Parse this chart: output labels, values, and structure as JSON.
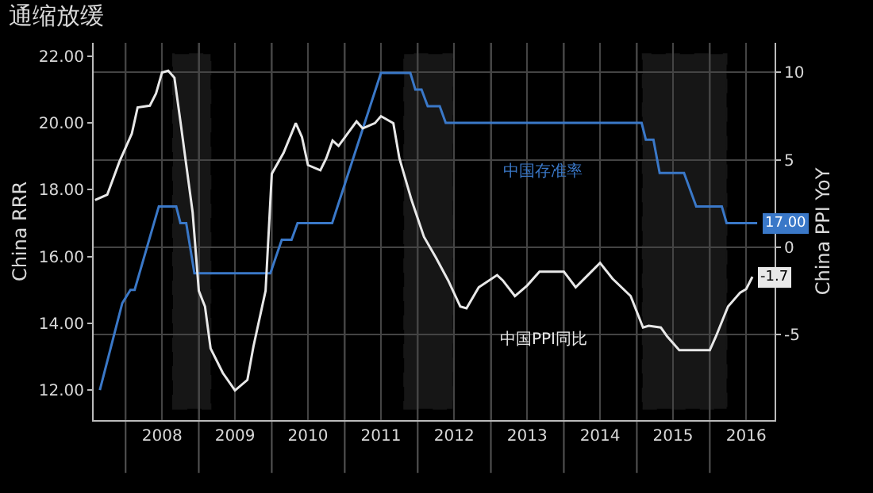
{
  "chart_data": {
    "type": "line",
    "title": "通缩放缓",
    "ylabel": "China RRR",
    "y2label": "China PPI YoY",
    "xlim": [
      "2007-07-25",
      "2016-11-20"
    ],
    "xticks": [
      {
        "value": "2008-01-01",
        "label": null
      },
      {
        "value": "2008-07-01",
        "label": "2008"
      },
      {
        "value": "2009-01-01",
        "label": null
      },
      {
        "value": "2009-07-01",
        "label": "2009"
      },
      {
        "value": "2010-01-01",
        "label": null
      },
      {
        "value": "2010-07-01",
        "label": "2010"
      },
      {
        "value": "2011-01-01",
        "label": null
      },
      {
        "value": "2011-07-01",
        "label": "2011"
      },
      {
        "value": "2012-01-01",
        "label": null
      },
      {
        "value": "2012-07-01",
        "label": "2012"
      },
      {
        "value": "2013-01-01",
        "label": null
      },
      {
        "value": "2013-07-01",
        "label": "2013"
      },
      {
        "value": "2014-01-01",
        "label": null
      },
      {
        "value": "2014-07-01",
        "label": "2014"
      },
      {
        "value": "2015-01-01",
        "label": null
      },
      {
        "value": "2015-07-01",
        "label": "2015"
      },
      {
        "value": "2016-01-01",
        "label": null
      },
      {
        "value": "2016-07-01",
        "label": "2016"
      }
    ],
    "ylim": [
      11.1,
      22.4
    ],
    "yticks": [
      {
        "value": 12,
        "label": "12.00"
      },
      {
        "value": 14,
        "label": "14.00"
      },
      {
        "value": 16,
        "label": "16.00"
      },
      {
        "value": 18,
        "label": "18.00"
      },
      {
        "value": 20,
        "label": "20.00"
      },
      {
        "value": 22,
        "label": "22.00"
      }
    ],
    "y2lim": [
      -9.9,
      11.7
    ],
    "y2ticks": [
      -5,
      0,
      5,
      10
    ],
    "grid": true,
    "legend": false,
    "series": [
      {
        "name": "中国存准率",
        "color": "#3a78c8",
        "x": [
          "2007-08-25",
          "2007-12-15",
          "2008-01-25",
          "2008-02-15",
          "2008-06-15",
          "2008-09-10",
          "2008-10-01",
          "2008-10-30",
          "2008-12-10",
          "2009-12-25",
          "2010-02-20",
          "2010-04-10",
          "2010-05-10",
          "2010-10-30",
          "2011-07-01",
          "2011-11-25",
          "2011-12-20",
          "2012-01-20",
          "2012-02-20",
          "2012-04-20",
          "2012-05-20",
          "2015-01-25",
          "2015-02-15",
          "2015-03-25",
          "2015-04-25",
          "2015-08-25",
          "2015-10-25",
          "2016-03-01",
          "2016-03-25",
          "2016-08-25"
        ],
        "values": [
          12.0,
          14.6,
          15.0,
          15.0,
          17.5,
          17.5,
          17.0,
          17.0,
          15.5,
          15.5,
          16.5,
          16.5,
          17.0,
          17.0,
          21.5,
          21.5,
          21.0,
          21.0,
          20.5,
          20.5,
          20.0,
          20.0,
          19.5,
          19.5,
          18.5,
          18.5,
          17.5,
          17.5,
          17.0,
          17.0
        ],
        "value_labels": [
          null,
          null,
          null,
          null,
          null,
          null,
          null,
          null,
          null,
          null,
          null,
          null,
          null,
          null,
          null,
          null,
          null,
          null,
          null,
          null,
          null,
          null,
          null,
          null,
          null,
          null,
          null,
          null,
          null,
          "17.00"
        ]
      },
      {
        "name": "中国PPI同比",
        "color": "#e8e8e8",
        "axis": "y2",
        "x": [
          "2007-08",
          "2007-10",
          "2007-12",
          "2008-02",
          "2008-03",
          "2008-05",
          "2008-06",
          "2008-07",
          "2008-08",
          "2008-09",
          "2008-10",
          "2008-12",
          "2009-01",
          "2009-02",
          "2009-03",
          "2009-05",
          "2009-07",
          "2009-09",
          "2009-10",
          "2009-12",
          "2010-01",
          "2010-03",
          "2010-05",
          "2010-06",
          "2010-07",
          "2010-09",
          "2010-10",
          "2010-11",
          "2010-12",
          "2011-03",
          "2011-04",
          "2011-06",
          "2011-07",
          "2011-09",
          "2011-10",
          "2011-12",
          "2012-02",
          "2012-04",
          "2012-06",
          "2012-08",
          "2012-09",
          "2012-11",
          "2013-02",
          "2013-03",
          "2013-05",
          "2013-07",
          "2013-09",
          "2014-01",
          "2014-03",
          "2014-05",
          "2014-07",
          "2014-09",
          "2014-12",
          "2015-02",
          "2015-03",
          "2015-05",
          "2015-06",
          "2015-08",
          "2016-01",
          "2016-02",
          "2016-04",
          "2016-06",
          "2016-07",
          "2016-08"
        ],
        "values": [
          2.7,
          3.0,
          4.9,
          6.5,
          8.0,
          8.1,
          8.8,
          10.0,
          10.1,
          9.7,
          7.2,
          2.0,
          -2.5,
          -3.4,
          -5.8,
          -7.2,
          -8.2,
          -7.6,
          -5.7,
          -2.5,
          4.2,
          5.4,
          7.1,
          6.3,
          4.7,
          4.4,
          5.1,
          6.1,
          5.8,
          7.2,
          6.8,
          7.1,
          7.5,
          7.1,
          5.1,
          2.7,
          0.6,
          -0.6,
          -1.9,
          -3.4,
          -3.5,
          -2.3,
          -1.6,
          -1.9,
          -2.8,
          -2.2,
          -1.4,
          -1.4,
          -2.3,
          -1.6,
          -0.9,
          -1.8,
          -2.8,
          -4.6,
          -4.5,
          -4.6,
          -5.1,
          -5.9,
          -5.9,
          -5.1,
          -3.4,
          -2.6,
          -2.4,
          -1.7
        ],
        "value_labels": [
          null,
          null,
          null,
          null,
          null,
          null,
          null,
          null,
          null,
          null,
          null,
          null,
          null,
          null,
          null,
          null,
          null,
          null,
          null,
          null,
          null,
          null,
          null,
          null,
          null,
          null,
          null,
          null,
          null,
          null,
          null,
          null,
          null,
          null,
          null,
          null,
          null,
          null,
          null,
          null,
          null,
          null,
          null,
          null,
          null,
          null,
          null,
          null,
          null,
          null,
          null,
          null,
          null,
          null,
          null,
          null,
          null,
          null,
          null,
          null,
          null,
          null,
          null,
          "-1.7"
        ]
      }
    ],
    "bands": [
      {
        "axis": "x",
        "from": "2008-08-25",
        "to": "2009-03-01",
        "color": "#b0b0b0"
      },
      {
        "axis": "x",
        "from": "2011-10-25",
        "to": "2012-06-25",
        "color": "#b0b0b0"
      },
      {
        "axis": "x",
        "from": "2015-01-30",
        "to": "2016-03-25",
        "color": "#b0b0b0"
      }
    ]
  }
}
